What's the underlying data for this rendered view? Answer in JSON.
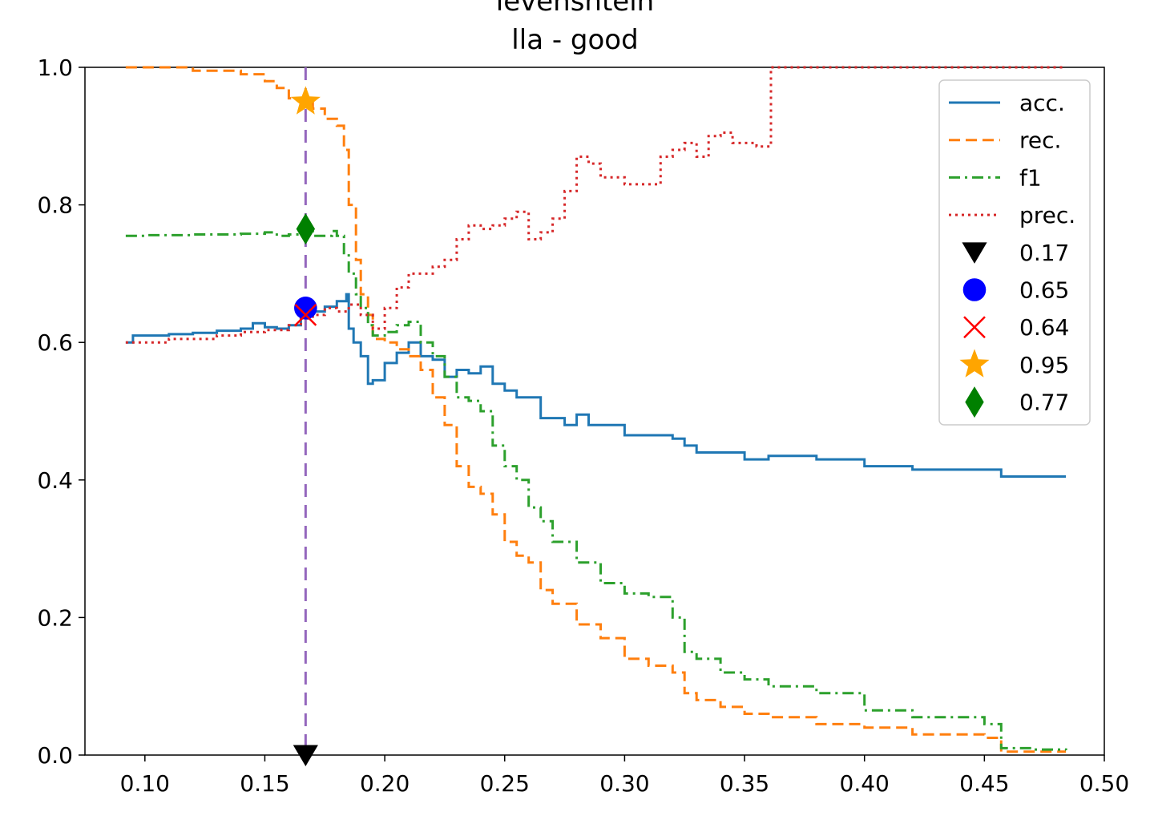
{
  "chart_data": {
    "type": "line",
    "title_lines": [
      "levenshtein",
      "lla  -  good"
    ],
    "xlabel": "",
    "ylabel": "",
    "xlim": [
      0.075,
      0.5
    ],
    "ylim": [
      0.0,
      1.0
    ],
    "xticks": [
      0.1,
      0.15,
      0.2,
      0.25,
      0.3,
      0.35,
      0.4,
      0.45,
      0.5
    ],
    "xtick_labels": [
      "0.10",
      "0.15",
      "0.20",
      "0.25",
      "0.30",
      "0.35",
      "0.40",
      "0.45",
      "0.50"
    ],
    "yticks": [
      0.0,
      0.2,
      0.4,
      0.6,
      0.8,
      1.0
    ],
    "ytick_labels": [
      "0.0",
      "0.2",
      "0.4",
      "0.6",
      "0.8",
      "1.0"
    ],
    "grid": false,
    "legend_position": "top-right",
    "threshold_line": {
      "x": 0.167,
      "color": "#9467bd",
      "style": "dashed"
    },
    "series": [
      {
        "name": "acc.",
        "color": "#1f77b4",
        "style": "solid",
        "x": [
          0.092,
          0.095,
          0.11,
          0.12,
          0.13,
          0.14,
          0.145,
          0.15,
          0.155,
          0.16,
          0.165,
          0.167,
          0.17,
          0.175,
          0.18,
          0.184,
          0.185,
          0.187,
          0.19,
          0.193,
          0.195,
          0.2,
          0.205,
          0.21,
          0.215,
          0.22,
          0.225,
          0.23,
          0.235,
          0.24,
          0.245,
          0.25,
          0.255,
          0.26,
          0.265,
          0.27,
          0.275,
          0.28,
          0.285,
          0.29,
          0.3,
          0.31,
          0.32,
          0.325,
          0.33,
          0.34,
          0.35,
          0.36,
          0.38,
          0.4,
          0.42,
          0.45,
          0.457,
          0.47,
          0.484
        ],
        "y": [
          0.6,
          0.61,
          0.612,
          0.614,
          0.617,
          0.62,
          0.628,
          0.622,
          0.62,
          0.625,
          0.64,
          0.65,
          0.645,
          0.652,
          0.66,
          0.67,
          0.62,
          0.6,
          0.58,
          0.54,
          0.545,
          0.57,
          0.585,
          0.6,
          0.58,
          0.575,
          0.55,
          0.56,
          0.555,
          0.565,
          0.54,
          0.53,
          0.52,
          0.52,
          0.49,
          0.49,
          0.48,
          0.495,
          0.48,
          0.48,
          0.465,
          0.465,
          0.46,
          0.45,
          0.44,
          0.44,
          0.43,
          0.435,
          0.43,
          0.42,
          0.415,
          0.415,
          0.405,
          0.405,
          0.405
        ]
      },
      {
        "name": "rec.",
        "color": "#ff7f0e",
        "style": "dashed",
        "x": [
          0.092,
          0.1,
          0.12,
          0.14,
          0.15,
          0.155,
          0.16,
          0.165,
          0.167,
          0.17,
          0.175,
          0.18,
          0.183,
          0.185,
          0.188,
          0.19,
          0.193,
          0.195,
          0.2,
          0.205,
          0.21,
          0.215,
          0.22,
          0.225,
          0.23,
          0.235,
          0.24,
          0.245,
          0.25,
          0.255,
          0.26,
          0.265,
          0.27,
          0.28,
          0.29,
          0.3,
          0.31,
          0.32,
          0.325,
          0.33,
          0.34,
          0.35,
          0.36,
          0.38,
          0.4,
          0.42,
          0.45,
          0.457,
          0.47,
          0.484
        ],
        "y": [
          1.0,
          1.0,
          0.995,
          0.99,
          0.98,
          0.97,
          0.955,
          0.955,
          0.95,
          0.94,
          0.925,
          0.915,
          0.88,
          0.8,
          0.72,
          0.67,
          0.64,
          0.605,
          0.6,
          0.59,
          0.58,
          0.56,
          0.52,
          0.48,
          0.42,
          0.39,
          0.38,
          0.35,
          0.31,
          0.29,
          0.28,
          0.24,
          0.22,
          0.19,
          0.17,
          0.14,
          0.13,
          0.12,
          0.09,
          0.08,
          0.07,
          0.06,
          0.055,
          0.045,
          0.04,
          0.03,
          0.025,
          0.005,
          0.005,
          0.005
        ]
      },
      {
        "name": "f1",
        "color": "#2ca02c",
        "style": "dashdot",
        "x": [
          0.092,
          0.1,
          0.12,
          0.14,
          0.15,
          0.155,
          0.16,
          0.165,
          0.167,
          0.17,
          0.175,
          0.178,
          0.18,
          0.183,
          0.185,
          0.188,
          0.19,
          0.193,
          0.195,
          0.2,
          0.205,
          0.21,
          0.215,
          0.22,
          0.225,
          0.23,
          0.235,
          0.24,
          0.245,
          0.25,
          0.255,
          0.26,
          0.265,
          0.27,
          0.28,
          0.29,
          0.3,
          0.31,
          0.32,
          0.325,
          0.33,
          0.34,
          0.35,
          0.36,
          0.38,
          0.4,
          0.42,
          0.45,
          0.457,
          0.47,
          0.484
        ],
        "y": [
          0.755,
          0.756,
          0.757,
          0.758,
          0.76,
          0.755,
          0.757,
          0.762,
          0.765,
          0.755,
          0.755,
          0.762,
          0.755,
          0.73,
          0.7,
          0.67,
          0.65,
          0.625,
          0.61,
          0.615,
          0.625,
          0.63,
          0.6,
          0.58,
          0.55,
          0.52,
          0.515,
          0.5,
          0.45,
          0.42,
          0.4,
          0.36,
          0.34,
          0.31,
          0.28,
          0.25,
          0.235,
          0.23,
          0.2,
          0.15,
          0.14,
          0.12,
          0.11,
          0.1,
          0.09,
          0.065,
          0.055,
          0.045,
          0.01,
          0.008,
          0.007
        ]
      },
      {
        "name": "prec.",
        "color": "#d62728",
        "style": "dotted",
        "x": [
          0.092,
          0.11,
          0.13,
          0.14,
          0.15,
          0.16,
          0.165,
          0.17,
          0.175,
          0.18,
          0.185,
          0.19,
          0.195,
          0.2,
          0.205,
          0.21,
          0.215,
          0.22,
          0.225,
          0.23,
          0.235,
          0.24,
          0.245,
          0.25,
          0.255,
          0.26,
          0.265,
          0.27,
          0.275,
          0.28,
          0.285,
          0.29,
          0.3,
          0.31,
          0.315,
          0.32,
          0.325,
          0.33,
          0.335,
          0.34,
          0.345,
          0.35,
          0.355,
          0.36,
          0.361,
          0.4,
          0.484
        ],
        "y": [
          0.6,
          0.605,
          0.61,
          0.615,
          0.618,
          0.625,
          0.635,
          0.64,
          0.65,
          0.645,
          0.655,
          0.64,
          0.62,
          0.65,
          0.68,
          0.7,
          0.7,
          0.71,
          0.72,
          0.75,
          0.77,
          0.765,
          0.77,
          0.78,
          0.79,
          0.75,
          0.76,
          0.78,
          0.82,
          0.87,
          0.86,
          0.84,
          0.83,
          0.83,
          0.87,
          0.88,
          0.89,
          0.87,
          0.9,
          0.905,
          0.89,
          0.89,
          0.885,
          0.885,
          1.0,
          1.0,
          1.0
        ]
      }
    ],
    "markers": [
      {
        "label": "0.17",
        "shape": "triangle-down",
        "color": "#000000",
        "x": 0.167,
        "y": 0.0
      },
      {
        "label": "0.65",
        "shape": "circle",
        "color": "#0000ff",
        "x": 0.167,
        "y": 0.65
      },
      {
        "label": "0.64",
        "shape": "x",
        "color": "#ff0000",
        "x": 0.167,
        "y": 0.64
      },
      {
        "label": "0.95",
        "shape": "star",
        "color": "#ffa500",
        "x": 0.167,
        "y": 0.95
      },
      {
        "label": "0.77",
        "shape": "diamond",
        "color": "#008000",
        "x": 0.167,
        "y": 0.765
      }
    ]
  }
}
